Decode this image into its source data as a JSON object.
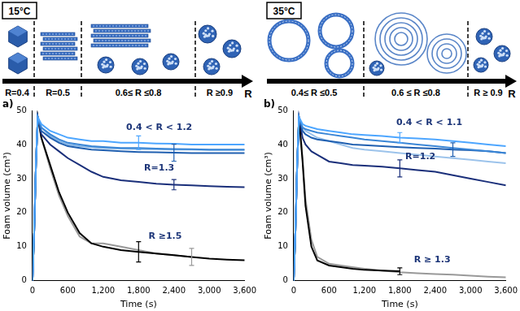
{
  "chart_data": [
    {
      "type": "line",
      "title": "a)",
      "x_label": "Time (s)",
      "y_label": "Foam volume (cm³)",
      "xlim": [
        0,
        3600
      ],
      "xticks": [
        0,
        600,
        1200,
        1800,
        2400,
        3000,
        3600
      ],
      "ylim": [
        0,
        50
      ],
      "yticks": [
        0,
        10,
        20,
        30,
        40,
        50
      ],
      "grid": false,
      "x": [
        0,
        30,
        60,
        90,
        150,
        300,
        450,
        600,
        800,
        1000,
        1200,
        1500,
        1800,
        2100,
        2400,
        2700,
        3000,
        3300,
        3600
      ],
      "series": [
        {
          "color": "#4da6ff",
          "values": [
            0,
            15,
            35,
            48,
            46,
            44,
            43,
            42,
            41.5,
            41,
            41,
            40.5,
            40.5,
            40.3,
            40.2,
            40,
            40,
            40,
            40
          ],
          "errors": [
            null,
            null,
            null,
            null,
            null,
            null,
            null,
            null,
            null,
            null,
            null,
            null,
            2,
            null,
            null,
            null,
            null,
            null,
            null
          ]
        },
        {
          "color": "#3a86d6",
          "values": [
            0,
            15,
            35,
            48,
            45,
            43,
            41.5,
            40.5,
            40,
            39.5,
            39.3,
            39,
            39,
            38.8,
            38.7,
            38.6,
            38.5,
            38.5,
            38.5
          ]
        },
        {
          "color": "#1f5fb0",
          "values": [
            0,
            15,
            35,
            48,
            44,
            42,
            40.5,
            39.5,
            39,
            38.5,
            38.3,
            38,
            37.8,
            37.7,
            37.6,
            37.5,
            37.5,
            37.5,
            37.5
          ],
          "errors": [
            null,
            null,
            null,
            null,
            null,
            null,
            null,
            null,
            null,
            null,
            null,
            null,
            null,
            null,
            2.5,
            null,
            null,
            null,
            null
          ]
        },
        {
          "color": "#7fb2e5",
          "values": [
            0,
            15,
            35,
            48,
            45,
            42.5,
            41,
            40,
            39.5,
            39.2,
            39,
            38.8,
            38.7,
            38.6,
            38.5,
            38.5,
            38.4,
            38.4,
            38.4
          ]
        },
        {
          "color": "#1a2f7a",
          "values": [
            0,
            15,
            35,
            48,
            43,
            40,
            38,
            36,
            34,
            32,
            30.5,
            29.5,
            29,
            28.5,
            28.2,
            28,
            27.8,
            27.6,
            27.5
          ],
          "errors": [
            null,
            null,
            null,
            null,
            null,
            null,
            null,
            null,
            null,
            null,
            null,
            null,
            null,
            null,
            1.5,
            null,
            null,
            null,
            null
          ]
        },
        {
          "color": "#000000",
          "values": [
            0,
            15,
            35,
            48,
            42,
            34,
            26,
            20,
            14,
            11,
            10,
            9,
            8.5,
            8,
            7.5,
            7,
            6.5,
            6.2,
            6
          ],
          "errors": [
            null,
            null,
            null,
            null,
            null,
            null,
            null,
            null,
            null,
            null,
            null,
            null,
            3,
            null,
            null,
            null,
            null,
            null,
            null
          ]
        },
        {
          "color": "#999999",
          "values": [
            0,
            15,
            35,
            48,
            42,
            33,
            25,
            19,
            13,
            11,
            11,
            10,
            9,
            8,
            7.5,
            7,
            null,
            null,
            null
          ],
          "errors": [
            null,
            null,
            null,
            null,
            null,
            null,
            null,
            null,
            null,
            null,
            null,
            null,
            null,
            null,
            null,
            2.5,
            null,
            null,
            null
          ]
        }
      ],
      "annotations": [
        {
          "text": "0.4 < R < 1.2",
          "x": 2150,
          "y": 45
        },
        {
          "text": "R=1.3",
          "x": 2150,
          "y": 33
        },
        {
          "text": "R ≥1.5",
          "x": 2250,
          "y": 13
        }
      ]
    },
    {
      "type": "line",
      "title": "b)",
      "x_label": "Time (s)",
      "y_label": "Foam volume (cm³)",
      "xlim": [
        0,
        3600
      ],
      "xticks": [
        0,
        600,
        1200,
        1800,
        2400,
        3000,
        3600
      ],
      "ylim": [
        0,
        50
      ],
      "yticks": [
        0,
        10,
        20,
        30,
        40,
        50
      ],
      "grid": false,
      "x": [
        0,
        30,
        60,
        90,
        150,
        200,
        300,
        400,
        600,
        800,
        1000,
        1200,
        1500,
        1800,
        2100,
        2400,
        2700,
        3000,
        3300,
        3600
      ],
      "series": [
        {
          "color": "#4da6ff",
          "values": [
            0,
            15,
            35,
            48,
            46,
            45.5,
            45,
            44.5,
            44,
            43.5,
            43,
            42.8,
            42.5,
            42,
            41.8,
            41.5,
            41,
            40.5,
            40,
            39.5
          ],
          "errors": [
            null,
            null,
            null,
            null,
            null,
            null,
            null,
            null,
            null,
            null,
            null,
            null,
            null,
            1.5,
            null,
            null,
            null,
            null,
            null,
            null
          ]
        },
        {
          "color": "#3a86d6",
          "values": [
            0,
            15,
            35,
            48,
            45,
            44.5,
            44,
            43.5,
            43,
            42.5,
            42,
            41.5,
            41,
            40.5,
            40,
            39.5,
            39,
            38.5,
            38,
            37.5
          ]
        },
        {
          "color": "#1f5fb0",
          "values": [
            0,
            15,
            35,
            48,
            44,
            43,
            42,
            41.5,
            41,
            40.5,
            40,
            39.8,
            39.5,
            39.2,
            39,
            38.8,
            38.5,
            38.3,
            38,
            37.5
          ],
          "errors": [
            null,
            null,
            null,
            null,
            null,
            null,
            null,
            null,
            null,
            null,
            null,
            null,
            null,
            null,
            null,
            null,
            2,
            null,
            null,
            null
          ]
        },
        {
          "color": "#9cc3eb",
          "values": [
            0,
            15,
            35,
            48,
            45,
            44,
            43,
            42,
            41,
            40,
            39,
            38.5,
            38,
            37.5,
            37,
            36.5,
            36,
            35.5,
            35,
            34.5
          ]
        },
        {
          "color": "#1a2f7a",
          "values": [
            0,
            15,
            35,
            48,
            42,
            40,
            38,
            37,
            35,
            34.5,
            34,
            33.8,
            33.5,
            33,
            32.5,
            32,
            31,
            30,
            29,
            28
          ],
          "errors": [
            null,
            null,
            null,
            null,
            null,
            null,
            null,
            null,
            null,
            null,
            null,
            null,
            null,
            2.5,
            null,
            null,
            null,
            null,
            null,
            null
          ]
        },
        {
          "color": "#000000",
          "values": [
            0,
            15,
            35,
            48,
            35,
            22,
            10,
            6,
            4.5,
            4,
            3.5,
            3.2,
            3,
            2.8,
            null,
            null,
            null,
            null,
            null,
            null
          ],
          "errors": [
            null,
            null,
            null,
            null,
            null,
            null,
            null,
            null,
            null,
            null,
            null,
            null,
            null,
            1,
            null,
            null,
            null,
            null,
            null,
            null
          ]
        },
        {
          "color": "#999999",
          "values": [
            0,
            15,
            35,
            48,
            36,
            24,
            12,
            7,
            5,
            4.5,
            4,
            3.5,
            3,
            2.5,
            2.2,
            2,
            1.8,
            1.5,
            1.2,
            1
          ]
        }
      ],
      "annotations": [
        {
          "text": "0.4 < R < 1.1",
          "x": 2300,
          "y": 46.5
        },
        {
          "text": "R=1.2",
          "x": 2150,
          "y": 36.5
        },
        {
          "text": "R ≥ 1.3",
          "x": 2350,
          "y": 6
        }
      ]
    }
  ],
  "schematics": [
    {
      "label": "15°C",
      "ranges": [
        "R=0.4",
        "R=0.5",
        "0.6≤ R ≤0.8",
        "R ≥0.9"
      ],
      "axis": "R"
    },
    {
      "label": "35°C",
      "ranges": [
        "0.4≤ R ≤0.5",
        "0.6 ≤ R ≤0.8",
        "R ≥ 0.9"
      ],
      "axis": "R"
    }
  ]
}
